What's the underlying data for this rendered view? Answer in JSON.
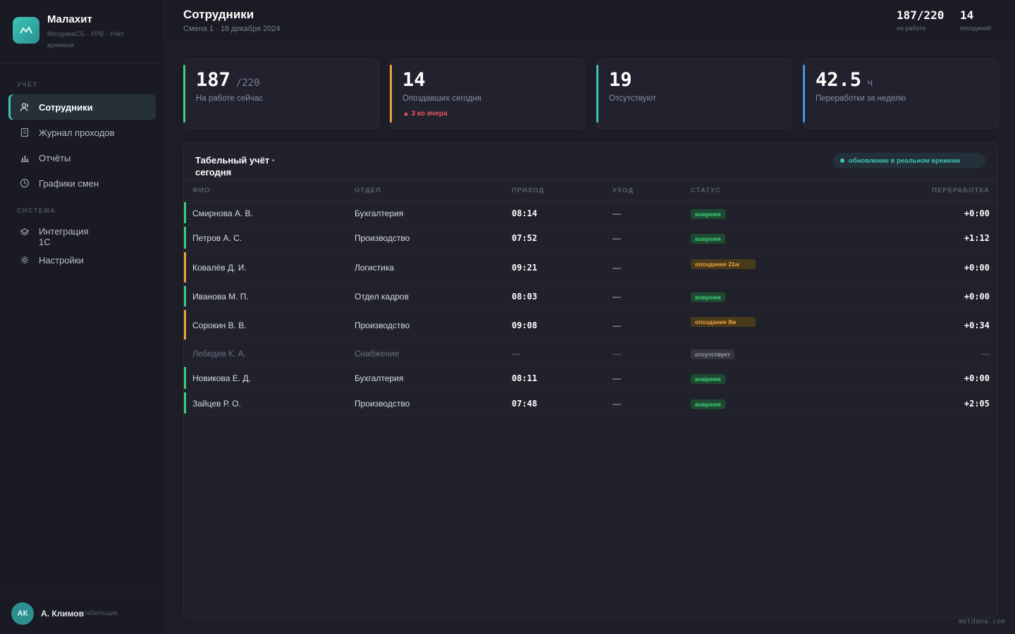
{
  "brand": {
    "title": "Малахит",
    "subtitle": "МелданаСБ · УРВ · Учёт времени"
  },
  "sidebar": {
    "section_account": "УЧЁТ",
    "section_system": "СИСТЕМА",
    "items": [
      {
        "label": "Сотрудники",
        "icon": "users-icon"
      },
      {
        "label": "Журнал проходов",
        "icon": "journal-icon"
      },
      {
        "label": "Отчёты",
        "icon": "chart-icon"
      },
      {
        "label": "Графики смен",
        "icon": "clock-icon"
      }
    ],
    "system_items": [
      {
        "label": "Интеграция 1С",
        "icon": "layers-icon"
      },
      {
        "label": "Настройки",
        "icon": "gear-icon"
      }
    ]
  },
  "user": {
    "initials": "АК",
    "name": "А. Климов",
    "role": "табельщик"
  },
  "header": {
    "title": "Сотрудники",
    "subtitle": "Смена 1 · 18 декабря 2024",
    "stat_at_work_value": "187/220",
    "stat_at_work_label": "на работе",
    "stat_late_value": "14",
    "stat_late_label": "опозданий"
  },
  "kpis": [
    {
      "value": "187",
      "unit": "/220",
      "label": "На работе сейчас",
      "trend": "",
      "color": "#3fd07a"
    },
    {
      "value": "14",
      "unit": "",
      "label": "Опоздавших сегодня",
      "trend": "▲ 3 ко вчера",
      "color": "#f1a33b"
    },
    {
      "value": "19",
      "unit": "",
      "label": "Отсутствуют",
      "trend": "",
      "color": "#3cc6b4"
    },
    {
      "value": "42.5",
      "unit": "ч",
      "label": "Переработки за неделю",
      "trend": "",
      "color": "#4a90e2"
    }
  ],
  "table": {
    "title": "Табельный учёт · сегодня",
    "live_label": "обновление в реальном времени",
    "columns": [
      "ФИО",
      "ОТДЕЛ",
      "ПРИХОД",
      "УХОД",
      "СТАТУС",
      "ПЕРЕРАБОТКА"
    ],
    "rows": [
      {
        "name": "Смирнова А. В.",
        "dept": "Бухгалтерия",
        "in": "08:14",
        "out": "—",
        "status": "вовремя",
        "overtime": "+0:00"
      },
      {
        "name": "Петров А. С.",
        "dept": "Производство",
        "in": "07:52",
        "out": "—",
        "status": "вовремя",
        "overtime": "+1:12"
      },
      {
        "name": "Ковалёв Д. И.",
        "dept": "Логистика",
        "in": "09:21",
        "out": "—",
        "status": "опоздание 21м",
        "overtime": "+0:00"
      },
      {
        "name": "Иванова М. П.",
        "dept": "Отдел кадров",
        "in": "08:03",
        "out": "—",
        "status": "вовремя",
        "overtime": "+0:00"
      },
      {
        "name": "Сорокин В. В.",
        "dept": "Производство",
        "in": "09:08",
        "out": "—",
        "status": "опоздание 8м",
        "overtime": "+0:34"
      },
      {
        "name": "Лебедев К. А.",
        "dept": "Снабжение",
        "in": "—",
        "out": "—",
        "status": "отсутствует",
        "overtime": "—"
      },
      {
        "name": "Новикова Е. Д.",
        "dept": "Бухгалтерия",
        "in": "08:11",
        "out": "—",
        "status": "вовремя",
        "overtime": "+0:00"
      },
      {
        "name": "Зайцев Р. О.",
        "dept": "Производство",
        "in": "07:48",
        "out": "—",
        "status": "вовремя",
        "overtime": "+2:05"
      }
    ]
  },
  "footer": {
    "mark": "meldana.com"
  },
  "colors": {
    "accent": "#3cc6b4",
    "ok": "#3fd07a",
    "late": "#f1a33b",
    "danger": "#e85a5a"
  }
}
